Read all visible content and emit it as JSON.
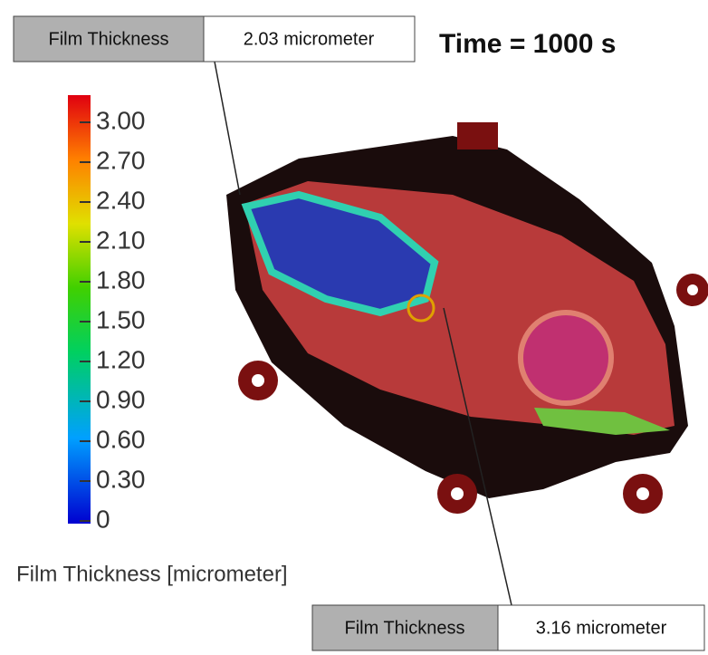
{
  "time_label": "Time = 1000 s",
  "probes": [
    {
      "name": "Film Thickness",
      "value_label": "2.03 micrometer"
    },
    {
      "name": "Film Thickness",
      "value_label": "3.16 micrometer"
    }
  ],
  "legend": {
    "title": "Film Thickness [micrometer]",
    "range": [
      0,
      3
    ],
    "ticks": [
      {
        "value": 3,
        "label": "3.00"
      },
      {
        "value": 2.7,
        "label": "2.70"
      },
      {
        "value": 2.4,
        "label": "2.40"
      },
      {
        "value": 2.1,
        "label": "2.10"
      },
      {
        "value": 1.8,
        "label": "1.80"
      },
      {
        "value": 1.5,
        "label": "1.50"
      },
      {
        "value": 1.2,
        "label": "1.20"
      },
      {
        "value": 0.9,
        "label": "0.90"
      },
      {
        "value": 0.6,
        "label": "0.60"
      },
      {
        "value": 0.3,
        "label": "0.30"
      },
      0
    ]
  }
}
